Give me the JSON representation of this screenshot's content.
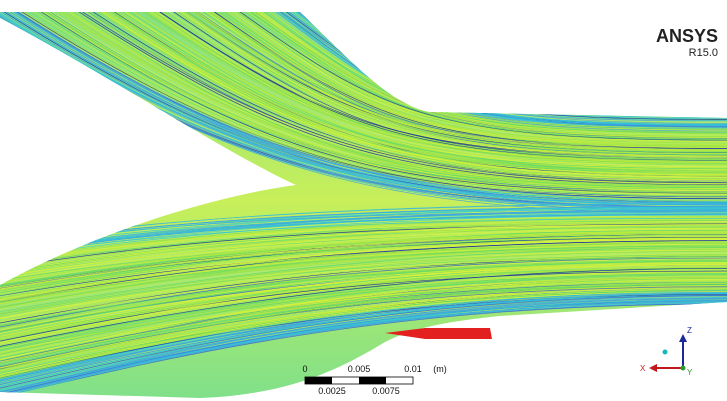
{
  "logo": {
    "brand": "ANSYS",
    "version": "R15.0"
  },
  "scale_bar": {
    "top_labels": [
      "0",
      "0.005",
      "0.01"
    ],
    "unit": "(m)",
    "bottom_labels": [
      "0.0025",
      "0.0075"
    ]
  },
  "axis_triad": {
    "vertical": "Z",
    "horizontal": "X",
    "depth": "Y"
  }
}
